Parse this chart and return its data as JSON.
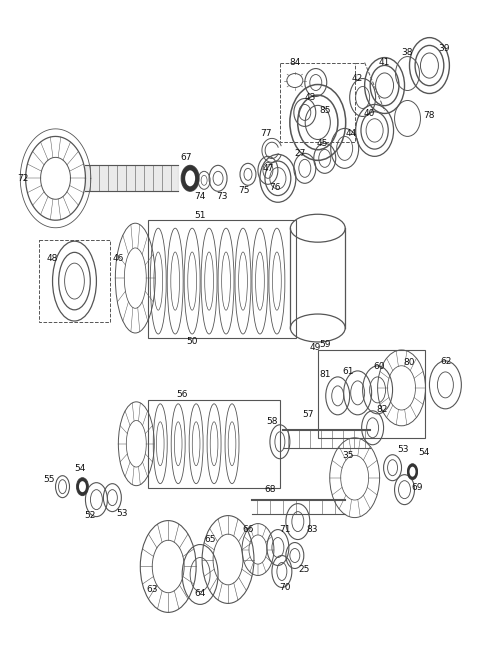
{
  "bg_color": "#ffffff",
  "line_color": "#555555",
  "label_color": "#111111",
  "label_fontsize": 6.5,
  "fig_width": 4.8,
  "fig_height": 6.55,
  "dpi": 100
}
